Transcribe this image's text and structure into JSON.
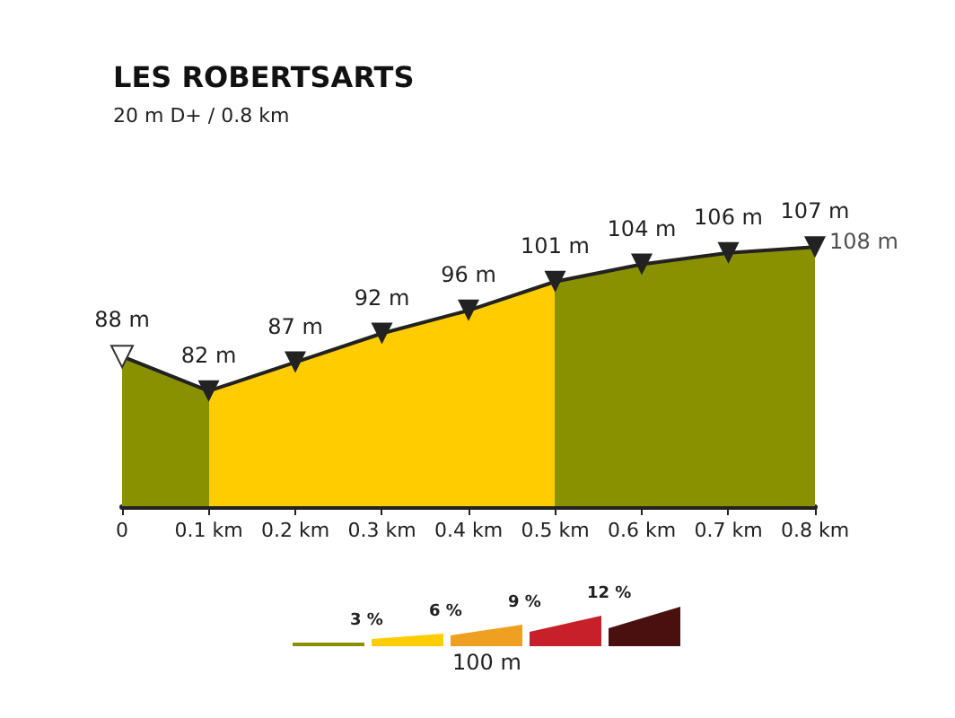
{
  "chart_data": {
    "type": "area",
    "title": "LES ROBERTSARTS",
    "subtitle": "20 m D+ / 0.8 km",
    "x": [
      0,
      0.1,
      0.2,
      0.3,
      0.4,
      0.5,
      0.6,
      0.7,
      0.8
    ],
    "values": [
      88,
      82,
      87,
      92,
      96,
      101,
      104,
      106,
      107
    ],
    "colors": [
      "#8a9100",
      "#ffcc00",
      "#ffcc00",
      "#ffcc00",
      "#ffcc00",
      "#8a9100",
      "#8a9100",
      "#8a9100",
      "#8a9100"
    ],
    "value_labels": [
      "88 m",
      "82 m",
      "87 m",
      "92 m",
      "96 m",
      "101 m",
      "104 m",
      "106 m",
      "107 m"
    ],
    "marker": "triangle",
    "xlim": [
      0,
      0.8
    ],
    "xticks": [
      0,
      {
        "value": 0.1,
        "label": "0.1 km"
      },
      {
        "value": 0.2,
        "label": "0.2 km"
      },
      {
        "value": 0.3,
        "label": "0.3 km"
      },
      {
        "value": 0.4,
        "label": "0.4 km"
      },
      {
        "value": 0.5,
        "label": "0.5 km"
      },
      {
        "value": 0.6,
        "label": "0.6 km"
      },
      {
        "value": 0.7,
        "label": "0.7 km"
      },
      {
        "value": 0.8,
        "label": "0.8 km"
      }
    ],
    "tick_labels": "x",
    "annotations": [
      {
        "text": "108 m",
        "x": 0.8,
        "y": 108
      },
      "3 %",
      "6 %",
      "9 %",
      "12 %",
      "100 m"
    ]
  }
}
